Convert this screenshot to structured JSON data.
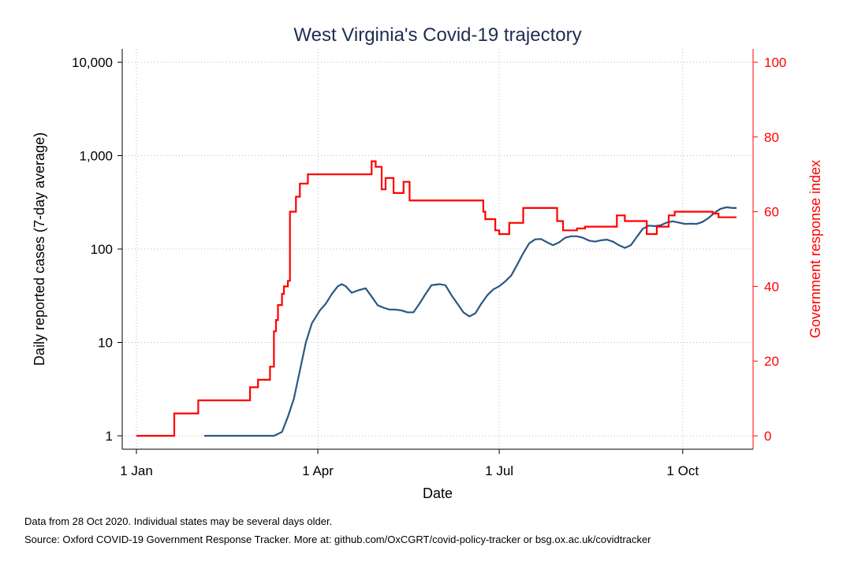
{
  "chart_data": {
    "type": "line",
    "title": "West Virginia's Covid-19 trajectory",
    "xlabel": "Date",
    "ylabel_left": "Daily reported cases (7-day average)",
    "ylabel_right": "Government response index",
    "x_ticks": [
      {
        "date": "2020-01-01",
        "label": "1 Jan"
      },
      {
        "date": "2020-04-01",
        "label": "1 Apr"
      },
      {
        "date": "2020-07-01",
        "label": "1 Jul"
      },
      {
        "date": "2020-10-01",
        "label": "1 Oct"
      }
    ],
    "x_range": [
      "2020-01-01",
      "2020-10-28"
    ],
    "y_left": {
      "scale": "log",
      "range": [
        1,
        10000
      ],
      "ticks": [
        {
          "value": 1,
          "label": "1"
        },
        {
          "value": 10,
          "label": "10"
        },
        {
          "value": 100,
          "label": "100"
        },
        {
          "value": 1000,
          "label": "1,000"
        },
        {
          "value": 10000,
          "label": "10,000"
        }
      ]
    },
    "y_right": {
      "scale": "linear",
      "range": [
        0,
        100
      ],
      "ticks": [
        {
          "value": 0,
          "label": "0"
        },
        {
          "value": 20,
          "label": "20"
        },
        {
          "value": 40,
          "label": "40"
        },
        {
          "value": 60,
          "label": "60"
        },
        {
          "value": 80,
          "label": "80"
        },
        {
          "value": 100,
          "label": "100"
        }
      ]
    },
    "grid": true,
    "series": [
      {
        "axis": "left",
        "color": "#2a5785",
        "points": [
          [
            "2020-02-04",
            1
          ],
          [
            "2020-03-10",
            1
          ],
          [
            "2020-03-14",
            1.1
          ],
          [
            "2020-03-17",
            1.6
          ],
          [
            "2020-03-20",
            2.5
          ],
          [
            "2020-03-23",
            5
          ],
          [
            "2020-03-26",
            10
          ],
          [
            "2020-03-29",
            16
          ],
          [
            "2020-04-02",
            22
          ],
          [
            "2020-04-05",
            26
          ],
          [
            "2020-04-08",
            33
          ],
          [
            "2020-04-11",
            40
          ],
          [
            "2020-04-13",
            42
          ],
          [
            "2020-04-15",
            40
          ],
          [
            "2020-04-18",
            34
          ],
          [
            "2020-04-21",
            36
          ],
          [
            "2020-04-25",
            38
          ],
          [
            "2020-04-28",
            31
          ],
          [
            "2020-05-01",
            25
          ],
          [
            "2020-05-04",
            23.5
          ],
          [
            "2020-05-07",
            22.5
          ],
          [
            "2020-05-10",
            22.5
          ],
          [
            "2020-05-13",
            22
          ],
          [
            "2020-05-16",
            21
          ],
          [
            "2020-05-19",
            21
          ],
          [
            "2020-05-22",
            26
          ],
          [
            "2020-05-25",
            33
          ],
          [
            "2020-05-28",
            41
          ],
          [
            "2020-06-01",
            42
          ],
          [
            "2020-06-04",
            41
          ],
          [
            "2020-06-07",
            32
          ],
          [
            "2020-06-10",
            26
          ],
          [
            "2020-06-13",
            21
          ],
          [
            "2020-06-16",
            19
          ],
          [
            "2020-06-19",
            20.5
          ],
          [
            "2020-06-22",
            26
          ],
          [
            "2020-06-25",
            32
          ],
          [
            "2020-06-28",
            37
          ],
          [
            "2020-07-01",
            40
          ],
          [
            "2020-07-04",
            45
          ],
          [
            "2020-07-07",
            52
          ],
          [
            "2020-07-10",
            68
          ],
          [
            "2020-07-13",
            90
          ],
          [
            "2020-07-16",
            115
          ],
          [
            "2020-07-19",
            127
          ],
          [
            "2020-07-22",
            128
          ],
          [
            "2020-07-25",
            118
          ],
          [
            "2020-07-28",
            110
          ],
          [
            "2020-07-31",
            118
          ],
          [
            "2020-08-03",
            132
          ],
          [
            "2020-08-06",
            137
          ],
          [
            "2020-08-09",
            137
          ],
          [
            "2020-08-12",
            132
          ],
          [
            "2020-08-15",
            123
          ],
          [
            "2020-08-18",
            120
          ],
          [
            "2020-08-21",
            124
          ],
          [
            "2020-08-24",
            126
          ],
          [
            "2020-08-27",
            120
          ],
          [
            "2020-08-30",
            110
          ],
          [
            "2020-09-02",
            103
          ],
          [
            "2020-09-05",
            110
          ],
          [
            "2020-09-08",
            135
          ],
          [
            "2020-09-11",
            165
          ],
          [
            "2020-09-14",
            178
          ],
          [
            "2020-09-17",
            176
          ],
          [
            "2020-09-20",
            180
          ],
          [
            "2020-09-23",
            192
          ],
          [
            "2020-09-26",
            198
          ],
          [
            "2020-09-29",
            192
          ],
          [
            "2020-10-02",
            186
          ],
          [
            "2020-10-05",
            187
          ],
          [
            "2020-10-08",
            186
          ],
          [
            "2020-10-11",
            195
          ],
          [
            "2020-10-14",
            215
          ],
          [
            "2020-10-17",
            245
          ],
          [
            "2020-10-20",
            270
          ],
          [
            "2020-10-23",
            280
          ],
          [
            "2020-10-26",
            275
          ],
          [
            "2020-10-28",
            275
          ]
        ]
      },
      {
        "axis": "right",
        "color": "#ff0000",
        "steps": [
          [
            "2020-01-01",
            0
          ],
          [
            "2020-01-20",
            6
          ],
          [
            "2020-02-01",
            9.5
          ],
          [
            "2020-02-27",
            13
          ],
          [
            "2020-03-02",
            15
          ],
          [
            "2020-03-08",
            18.5
          ],
          [
            "2020-03-10",
            28
          ],
          [
            "2020-03-11",
            31
          ],
          [
            "2020-03-12",
            35
          ],
          [
            "2020-03-14",
            38
          ],
          [
            "2020-03-15",
            40
          ],
          [
            "2020-03-17",
            41.5
          ],
          [
            "2020-03-18",
            60
          ],
          [
            "2020-03-21",
            64
          ],
          [
            "2020-03-23",
            67.5
          ],
          [
            "2020-03-27",
            70
          ],
          [
            "2020-04-28",
            73.5
          ],
          [
            "2020-04-30",
            72
          ],
          [
            "2020-05-03",
            66
          ],
          [
            "2020-05-05",
            69
          ],
          [
            "2020-05-09",
            65
          ],
          [
            "2020-05-14",
            68
          ],
          [
            "2020-05-17",
            63
          ],
          [
            "2020-06-23",
            60
          ],
          [
            "2020-06-24",
            58
          ],
          [
            "2020-06-29",
            55
          ],
          [
            "2020-07-01",
            54
          ],
          [
            "2020-07-06",
            57
          ],
          [
            "2020-07-13",
            61
          ],
          [
            "2020-07-30",
            57.5
          ],
          [
            "2020-08-02",
            55
          ],
          [
            "2020-08-09",
            55.5
          ],
          [
            "2020-08-13",
            56
          ],
          [
            "2020-08-29",
            59
          ],
          [
            "2020-09-02",
            57.5
          ],
          [
            "2020-09-13",
            54
          ],
          [
            "2020-09-18",
            56
          ],
          [
            "2020-09-24",
            59
          ],
          [
            "2020-09-27",
            60
          ],
          [
            "2020-10-16",
            59.5
          ],
          [
            "2020-10-19",
            58.5
          ],
          [
            "2020-10-25",
            58.5
          ]
        ]
      }
    ]
  },
  "notes": {
    "data_note": "Data from 28 Oct 2020. Individual states may be several days older.",
    "source_note": "Source: Oxford COVID-19 Government Response Tracker. More at: github.com/OxCGRT/covid-policy-tracker or bsg.ox.ac.uk/covidtracker"
  }
}
